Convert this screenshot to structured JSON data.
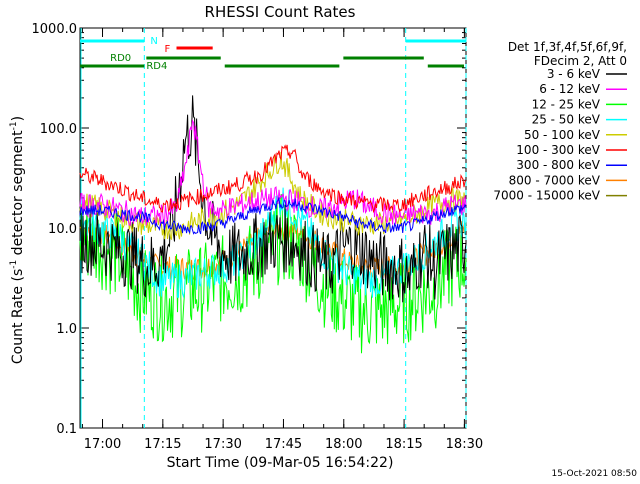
{
  "chart_data": {
    "type": "line",
    "title": "RHESSI Count Rates",
    "xlabel": "Start Time (09-Mar-05 16:54:22)",
    "ylabel_main": "Count Rate (s",
    "ylabel_sup1": "-1",
    "ylabel_mid": " detector segment",
    "ylabel_sup2": "-1",
    "ylabel_end": ")",
    "y_scale": "log",
    "ylim": [
      0.1,
      1000
    ],
    "y_ticks": [
      {
        "v": 1000,
        "label": "1000.0"
      },
      {
        "v": 100,
        "label": "100.0"
      },
      {
        "v": 10,
        "label": "10.0"
      },
      {
        "v": 1,
        "label": "1.0"
      },
      {
        "v": 0.1,
        "label": "0.1"
      }
    ],
    "xlim": [
      0,
      96
    ],
    "x_unit": "minutes from 16:54:22",
    "x_ticks": [
      {
        "v": 5.6,
        "label": "17:00"
      },
      {
        "v": 20.6,
        "label": "17:15"
      },
      {
        "v": 35.6,
        "label": "17:30"
      },
      {
        "v": 50.6,
        "label": "17:45"
      },
      {
        "v": 65.6,
        "label": "18:00"
      },
      {
        "v": 80.6,
        "label": "18:15"
      },
      {
        "v": 95.6,
        "label": "18:30"
      }
    ],
    "legend_header": [
      "Det 1f,3f,4f,5f,6f,9f,",
      "FDecim 2, Att 0"
    ],
    "legend_placement": "right",
    "series": [
      {
        "name": "3 - 6 keV",
        "color": "#000000",
        "x": [
          0,
          5,
          10,
          14,
          17,
          20,
          23,
          26,
          28,
          30,
          32,
          35,
          38,
          42,
          46,
          50,
          54,
          58,
          62,
          65,
          68,
          72,
          76,
          80,
          82,
          84,
          86,
          88,
          90,
          93,
          96
        ],
        "y": [
          8,
          7,
          6,
          5,
          4,
          5,
          9,
          70,
          110,
          30,
          10,
          6,
          5,
          6,
          7,
          8,
          7,
          5,
          4,
          6,
          7,
          5,
          4,
          4,
          3,
          5,
          6,
          4,
          5,
          6,
          7
        ]
      },
      {
        "name": "6 - 12 keV",
        "color": "#ff00ff",
        "x": [
          0,
          5,
          10,
          15,
          20,
          24,
          27,
          28,
          30,
          32,
          35,
          40,
          45,
          50,
          55,
          60,
          64,
          68,
          72,
          76,
          80,
          84,
          88,
          92,
          96
        ],
        "y": [
          17,
          17,
          15,
          13,
          13,
          16,
          60,
          130,
          40,
          16,
          15,
          17,
          19,
          20,
          18,
          15,
          17,
          20,
          16,
          14,
          13,
          14,
          14,
          17,
          17
        ]
      },
      {
        "name": "12 - 25 keV",
        "color": "#00ff00",
        "x": [
          0,
          5,
          10,
          15,
          20,
          25,
          30,
          35,
          40,
          45,
          50,
          55,
          60,
          65,
          70,
          75,
          80,
          84,
          88,
          92,
          96
        ],
        "y": [
          8,
          7,
          5,
          2.5,
          2,
          2.2,
          2.5,
          3,
          3.5,
          5,
          8,
          6,
          3,
          2,
          1.5,
          1.5,
          1.8,
          2.2,
          2.5,
          4,
          5
        ]
      },
      {
        "name": "25 - 50 keV",
        "color": "#00ffff",
        "x": [
          0,
          5,
          10,
          15,
          20,
          25,
          30,
          35,
          40,
          45,
          50,
          55,
          60,
          65,
          70,
          75,
          80,
          84,
          88,
          92,
          96
        ],
        "y": [
          12,
          10,
          8,
          5,
          3,
          3,
          3.5,
          4,
          5,
          8,
          20,
          12,
          6,
          4,
          3,
          3,
          4,
          5,
          7,
          10,
          12
        ]
      },
      {
        "name": "50 - 100 keV",
        "color": "#cccc00",
        "x": [
          0,
          5,
          10,
          15,
          20,
          25,
          30,
          35,
          40,
          45,
          50,
          55,
          60,
          65,
          70,
          75,
          80,
          84,
          88,
          92,
          96
        ],
        "y": [
          18,
          16,
          13,
          11,
          10,
          10,
          12,
          14,
          18,
          30,
          50,
          20,
          14,
          12,
          11,
          11,
          12,
          14,
          17,
          19,
          19
        ]
      },
      {
        "name": "100 - 300 keV",
        "color": "#ff0000",
        "x": [
          0,
          5,
          10,
          15,
          20,
          25,
          30,
          35,
          40,
          45,
          50,
          53,
          55,
          60,
          65,
          70,
          75,
          80,
          84,
          88,
          92,
          96
        ],
        "y": [
          35,
          30,
          25,
          20,
          17,
          18,
          21,
          24,
          28,
          35,
          55,
          58,
          35,
          24,
          20,
          18,
          17,
          17,
          20,
          23,
          26,
          30
        ]
      },
      {
        "name": "300 - 800 keV",
        "color": "#0000ff",
        "x": [
          0,
          5,
          10,
          15,
          20,
          25,
          30,
          35,
          40,
          45,
          50,
          55,
          60,
          65,
          70,
          75,
          80,
          84,
          88,
          92,
          96
        ],
        "y": [
          15,
          15,
          14,
          13,
          11,
          10,
          10,
          11,
          13,
          16,
          18,
          17,
          15,
          13,
          11,
          10,
          10,
          11,
          13,
          15,
          16
        ]
      },
      {
        "name": "800 - 7000 keV",
        "color": "#ff8000",
        "x": [
          0,
          5,
          10,
          15,
          20,
          25,
          30,
          35,
          40,
          45,
          50,
          55,
          60,
          65,
          70,
          75,
          80,
          84,
          88,
          92,
          96
        ],
        "y": [
          10,
          9,
          7,
          5,
          4,
          4,
          4,
          4.5,
          6,
          8,
          10,
          9,
          7,
          5,
          4,
          4,
          4,
          5,
          6,
          8,
          10
        ]
      },
      {
        "name": "7000 - 15000 keV",
        "color": "#808000",
        "x": [
          0,
          96
        ],
        "y": [
          0.1,
          0.1
        ]
      }
    ],
    "annotations": {
      "N_label": "N",
      "F_label": "F",
      "RD0_label": "RD0",
      "RD4_label": "RD4",
      "night_color": "#00ffff",
      "flare_color": "#ff0000",
      "rd_color": "#008000",
      "night_bars": [
        [
          0,
          16
        ],
        [
          81,
          96
        ]
      ],
      "dashed_lines": [
        16,
        81,
        96
      ],
      "flare_bar": [
        24,
        33
      ],
      "rd0_bar": [
        0,
        16
      ],
      "rd_bars": [
        [
          16,
          35.5
        ],
        [
          35.5,
          65
        ],
        [
          65,
          86
        ],
        [
          86,
          96
        ]
      ],
      "tick_marks_minor": true
    },
    "timestamp": "15-Oct-2021 08:50"
  }
}
